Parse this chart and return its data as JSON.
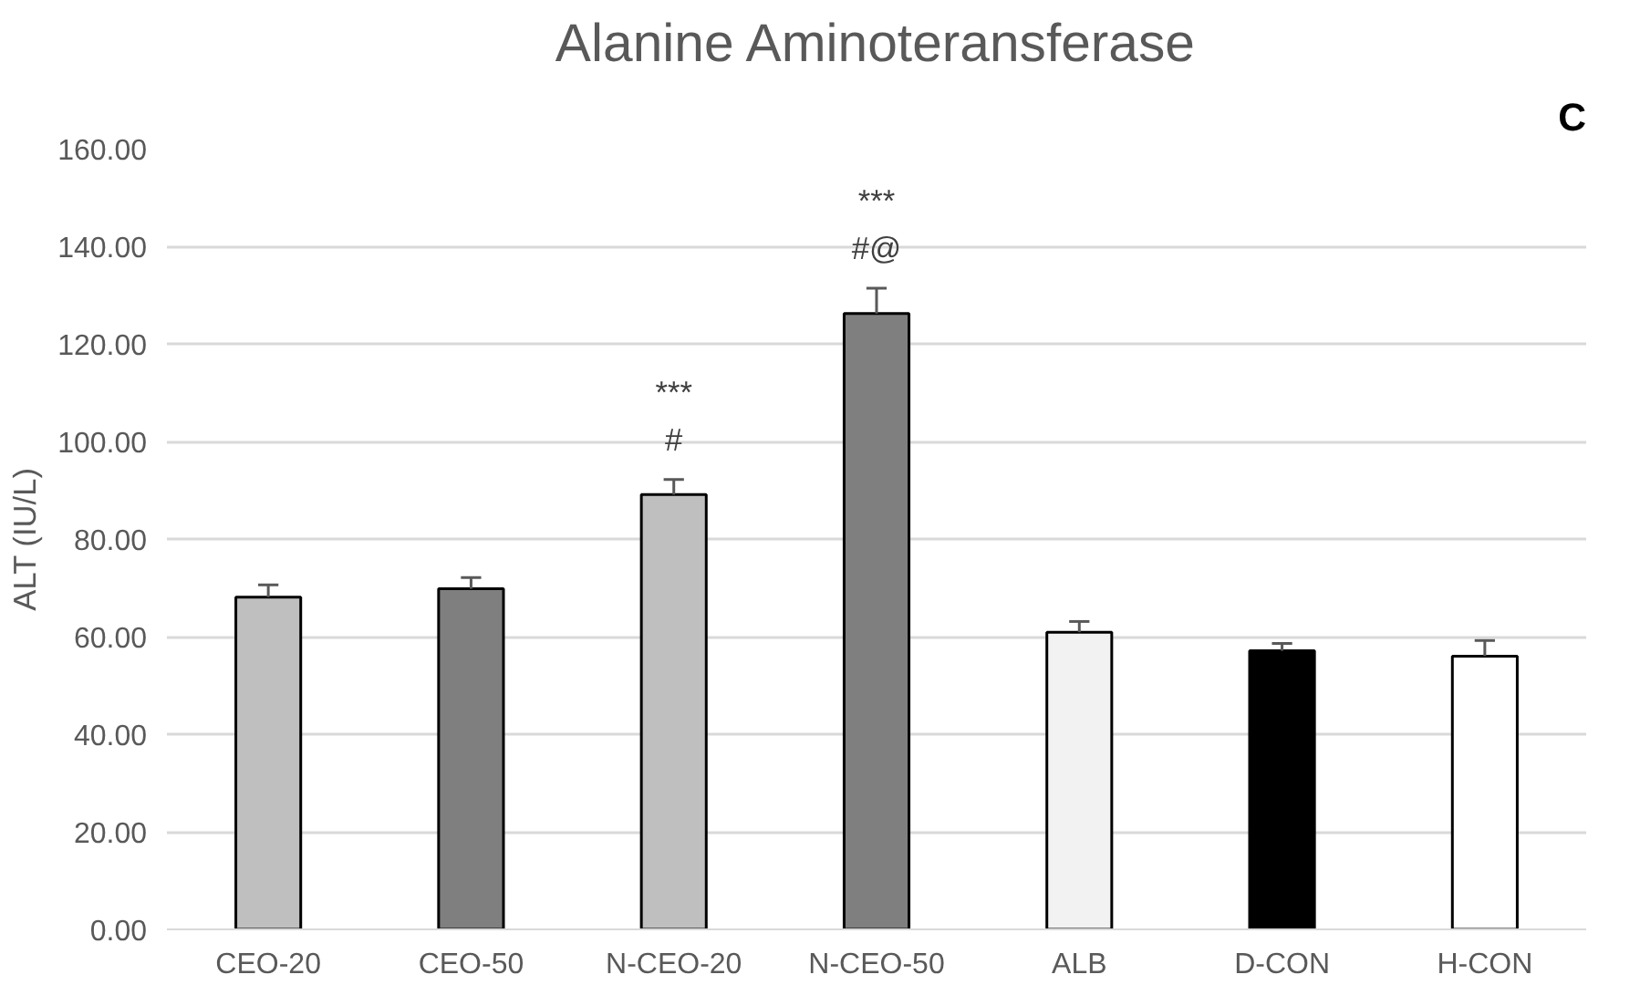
{
  "chart_data": {
    "type": "bar",
    "title": "Alanine Aminoteransferase",
    "ylabel": "ALT (IU/L)",
    "categories": [
      "CEO-20",
      "CEO-50",
      "N-CEO-20",
      "N-CEO-50",
      "ALB",
      "D-CON",
      "H-CON"
    ],
    "values": [
      68.1,
      69.8,
      89.1,
      126.2,
      60.9,
      57.1,
      56.0
    ],
    "errors": [
      2.5,
      2.3,
      3.1,
      5.2,
      2.2,
      1.5,
      3.2
    ],
    "colors": [
      "#bfbfbf",
      "#7f7f7f",
      "#bfbfbf",
      "#7f7f7f",
      "#f2f2f2",
      "#000000",
      "#ffffff"
    ],
    "ylim": [
      0,
      160
    ],
    "yticks": [
      {
        "value": 0,
        "label": "0.00"
      },
      {
        "value": 20,
        "label": "20.00"
      },
      {
        "value": 40,
        "label": "40.00"
      },
      {
        "value": 60,
        "label": "60.00"
      },
      {
        "value": 80,
        "label": "80.00"
      },
      {
        "value": 100,
        "label": "100.00"
      },
      {
        "value": 120,
        "label": "120.00"
      },
      {
        "value": 140,
        "label": "140.00"
      },
      {
        "value": 160,
        "label": "160.00"
      }
    ],
    "grid": "y",
    "annotations": [
      "***",
      "#",
      "***",
      "#@",
      "C"
    ]
  }
}
